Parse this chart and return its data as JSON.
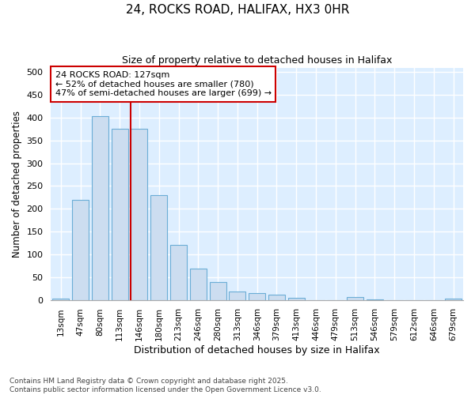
{
  "title_line1": "24, ROCKS ROAD, HALIFAX, HX3 0HR",
  "title_line2": "Size of property relative to detached houses in Halifax",
  "xlabel": "Distribution of detached houses by size in Halifax",
  "ylabel": "Number of detached properties",
  "categories": [
    "13sqm",
    "47sqm",
    "80sqm",
    "113sqm",
    "146sqm",
    "180sqm",
    "213sqm",
    "246sqm",
    "280sqm",
    "313sqm",
    "346sqm",
    "379sqm",
    "413sqm",
    "446sqm",
    "479sqm",
    "513sqm",
    "546sqm",
    "579sqm",
    "612sqm",
    "646sqm",
    "679sqm"
  ],
  "values": [
    3,
    220,
    403,
    375,
    375,
    230,
    120,
    68,
    40,
    18,
    15,
    12,
    5,
    0,
    0,
    7,
    1,
    0,
    0,
    0,
    3
  ],
  "bar_color": "#ccddf0",
  "bar_edge_color": "#6badd6",
  "vline_x_index": 4,
  "vline_color": "#cc0000",
  "annotation_text": "24 ROCKS ROAD: 127sqm\n← 52% of detached houses are smaller (780)\n47% of semi-detached houses are larger (699) →",
  "annotation_box_color": "#ffffff",
  "annotation_box_edge": "#cc0000",
  "ylim": [
    0,
    510
  ],
  "yticks": [
    0,
    50,
    100,
    150,
    200,
    250,
    300,
    350,
    400,
    450,
    500
  ],
  "fig_bg_color": "#ffffff",
  "plot_bg_color": "#ddeeff",
  "grid_color": "#ffffff",
  "footer_line1": "Contains HM Land Registry data © Crown copyright and database right 2025.",
  "footer_line2": "Contains public sector information licensed under the Open Government Licence v3.0."
}
